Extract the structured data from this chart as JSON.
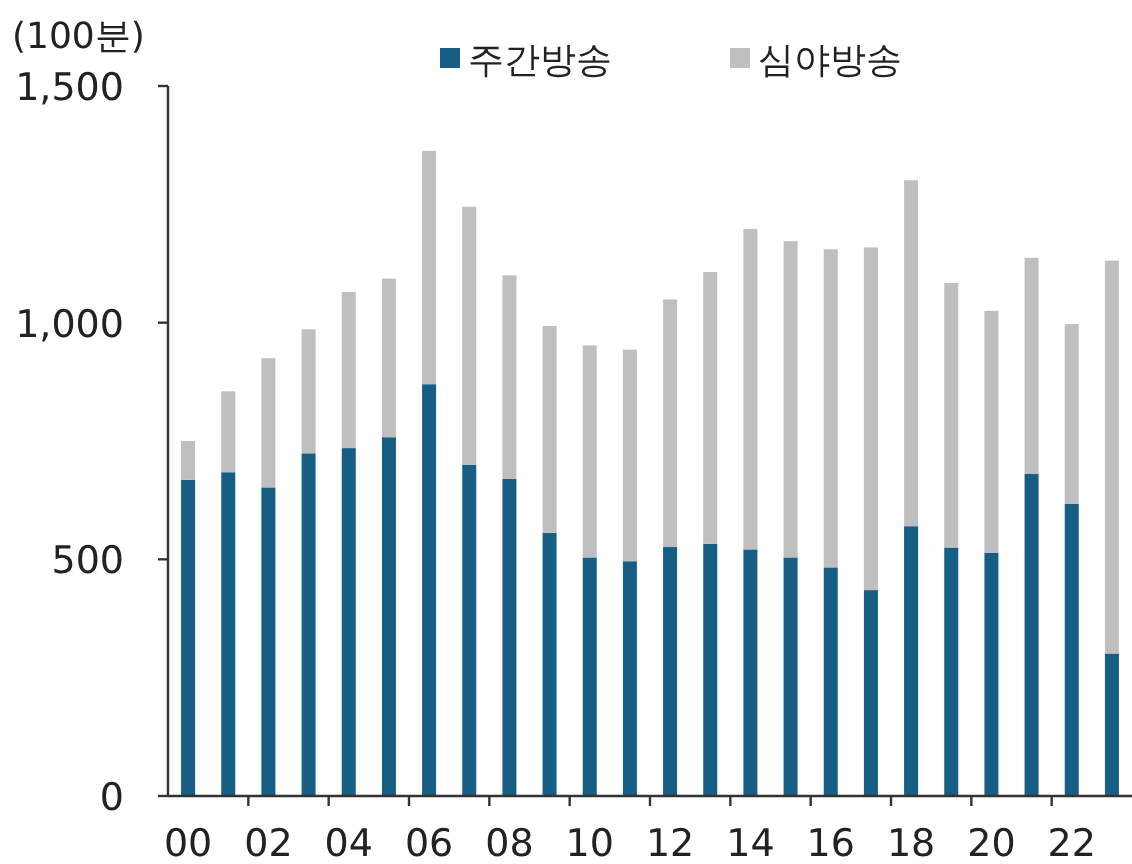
{
  "chart_data": {
    "type": "bar",
    "stacked": true,
    "ylabel": "(100분)",
    "legend": "top",
    "categories": [
      "00",
      null,
      "02",
      null,
      "04",
      null,
      "06",
      null,
      "08",
      null,
      "10",
      null,
      "12",
      null,
      "14",
      null,
      "16",
      null,
      "18",
      null,
      "20",
      null,
      "22",
      null
    ],
    "series": [
      {
        "name": "주간방송",
        "color": "#165e83",
        "values": [
          668,
          684,
          652,
          724,
          735,
          758,
          870,
          700,
          670,
          556,
          504,
          496,
          526,
          533,
          521,
          504,
          483,
          435,
          570,
          525,
          514,
          681,
          617,
          301
        ]
      },
      {
        "name": "심야방송",
        "color": "#bfbfbf",
        "values": [
          82,
          171,
          273,
          262,
          330,
          335,
          493,
          545,
          430,
          437,
          448,
          447,
          523,
          574,
          677,
          668,
          672,
          724,
          731,
          559,
          511,
          456,
          380,
          830
        ]
      }
    ],
    "ylim": [
      0,
      1500
    ],
    "yticks": [
      0,
      500,
      {
        "value": 1000,
        "label": "1,000"
      },
      {
        "value": 1500,
        "label": "1,500"
      }
    ]
  }
}
